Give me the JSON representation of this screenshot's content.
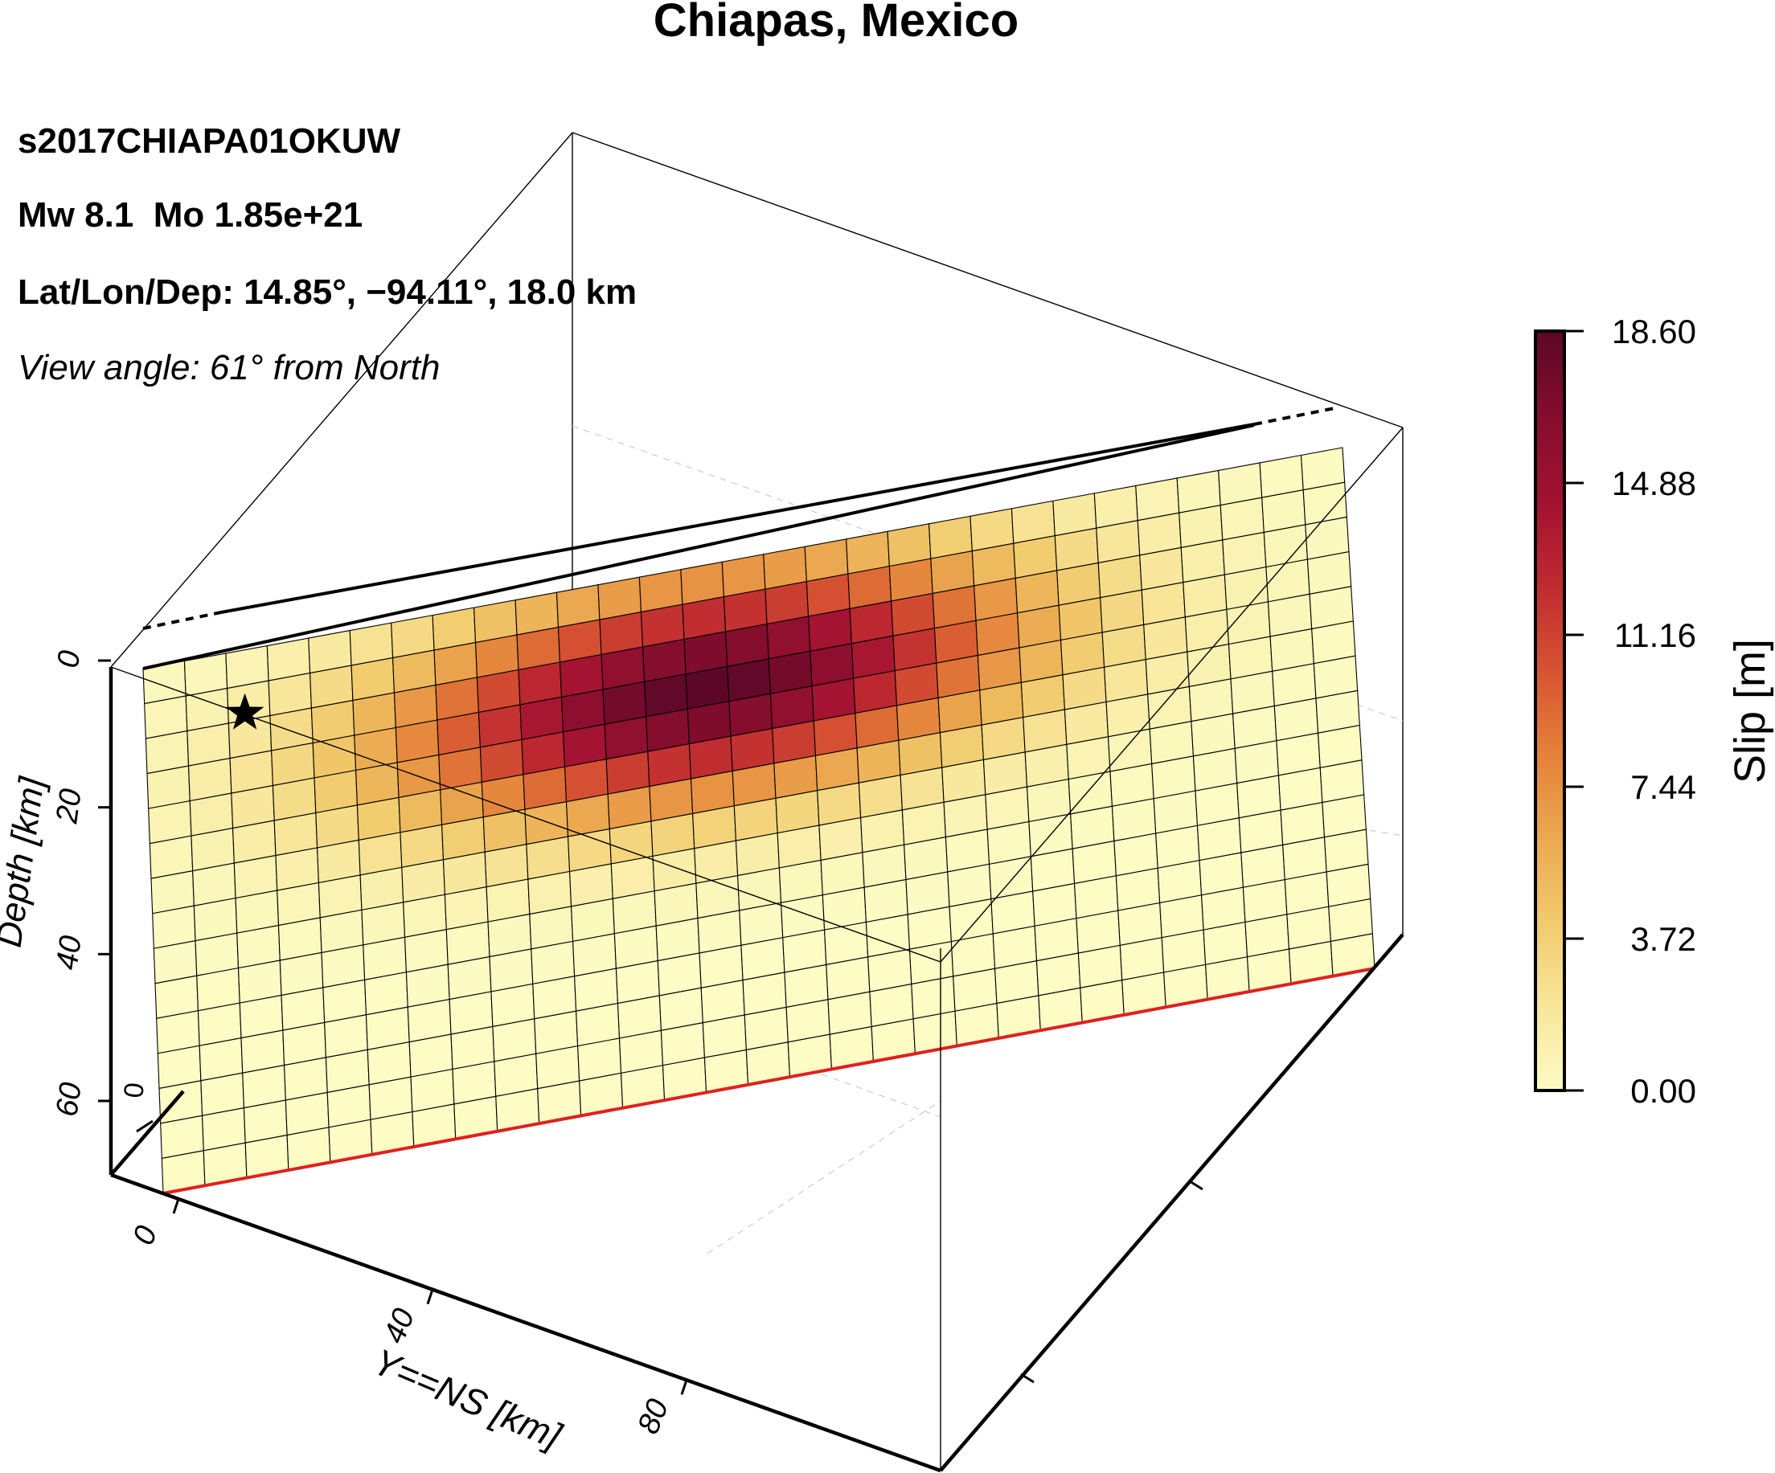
{
  "chart_data": {
    "type": "heatmap",
    "title": "Chiapas, Mexico",
    "event_id": "s2017CHIAPA01OKUW",
    "magnitude_text": "Mw 8.1  Mo 1.85e+21",
    "hypocenter_text": "Lat/Lon/Dep: 14.85°, −94.11°, 18.0 km",
    "view_text": "View angle: 61° from North",
    "zlabel": "Depth [km]",
    "ylabel": "Y==NS [km]",
    "z_ticks": [
      "0",
      "20",
      "40",
      "60"
    ],
    "z_range": [
      0,
      70
    ],
    "y_ticks": [
      "0",
      "40",
      "80"
    ],
    "x_tick_visible": "0",
    "grid_rows": 15,
    "grid_cols": 29,
    "slip_peak_m": 18.6,
    "slip_peak_cell": {
      "row": 3.5,
      "col": 13.5
    },
    "slip_spread_cells": {
      "row": 3.1,
      "col": 7.5
    },
    "hypocenter_cell": {
      "row": 1.8,
      "col": 2.4
    },
    "colorbar": {
      "label": "Slip [m]",
      "ticks": [
        "18.60",
        "14.88",
        "11.16",
        "7.44",
        "3.72",
        "0.00"
      ],
      "range": [
        0,
        18.6
      ],
      "colors": [
        "#fcfcc4",
        "#f8e69a",
        "#f1ca6c",
        "#eba850",
        "#e48038",
        "#d65233",
        "#bf2a30",
        "#a11131",
        "#840d2e",
        "#5c0727"
      ]
    },
    "fault_top_color": "#000000",
    "fault_bottom_color": "#e02020",
    "grid": true
  }
}
